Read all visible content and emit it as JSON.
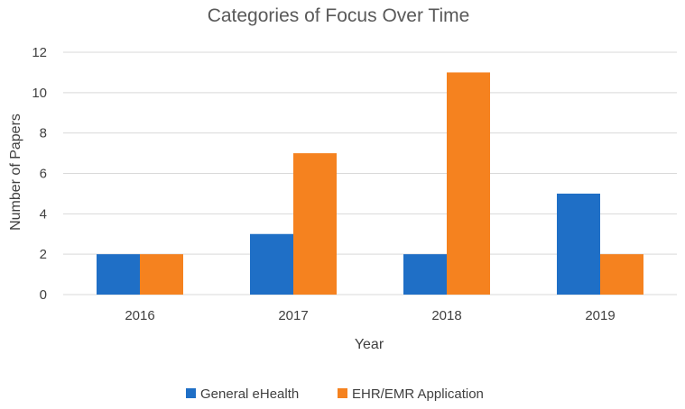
{
  "chart_data": {
    "type": "bar",
    "title": "Categories of Focus Over Time",
    "xlabel": "Year",
    "ylabel": "Number of Papers",
    "categories": [
      "2016",
      "2017",
      "2018",
      "2019"
    ],
    "series": [
      {
        "name": "General eHealth",
        "values": [
          2,
          3,
          2,
          5
        ],
        "color": "#1f6fc6"
      },
      {
        "name": "EHR/EMR Application",
        "values": [
          2,
          7,
          11,
          2
        ],
        "color": "#f5821f"
      }
    ],
    "ylim": [
      0,
      12
    ],
    "yticks": [
      0,
      2,
      4,
      6,
      8,
      10,
      12
    ],
    "grid": true,
    "legend_position": "bottom"
  }
}
